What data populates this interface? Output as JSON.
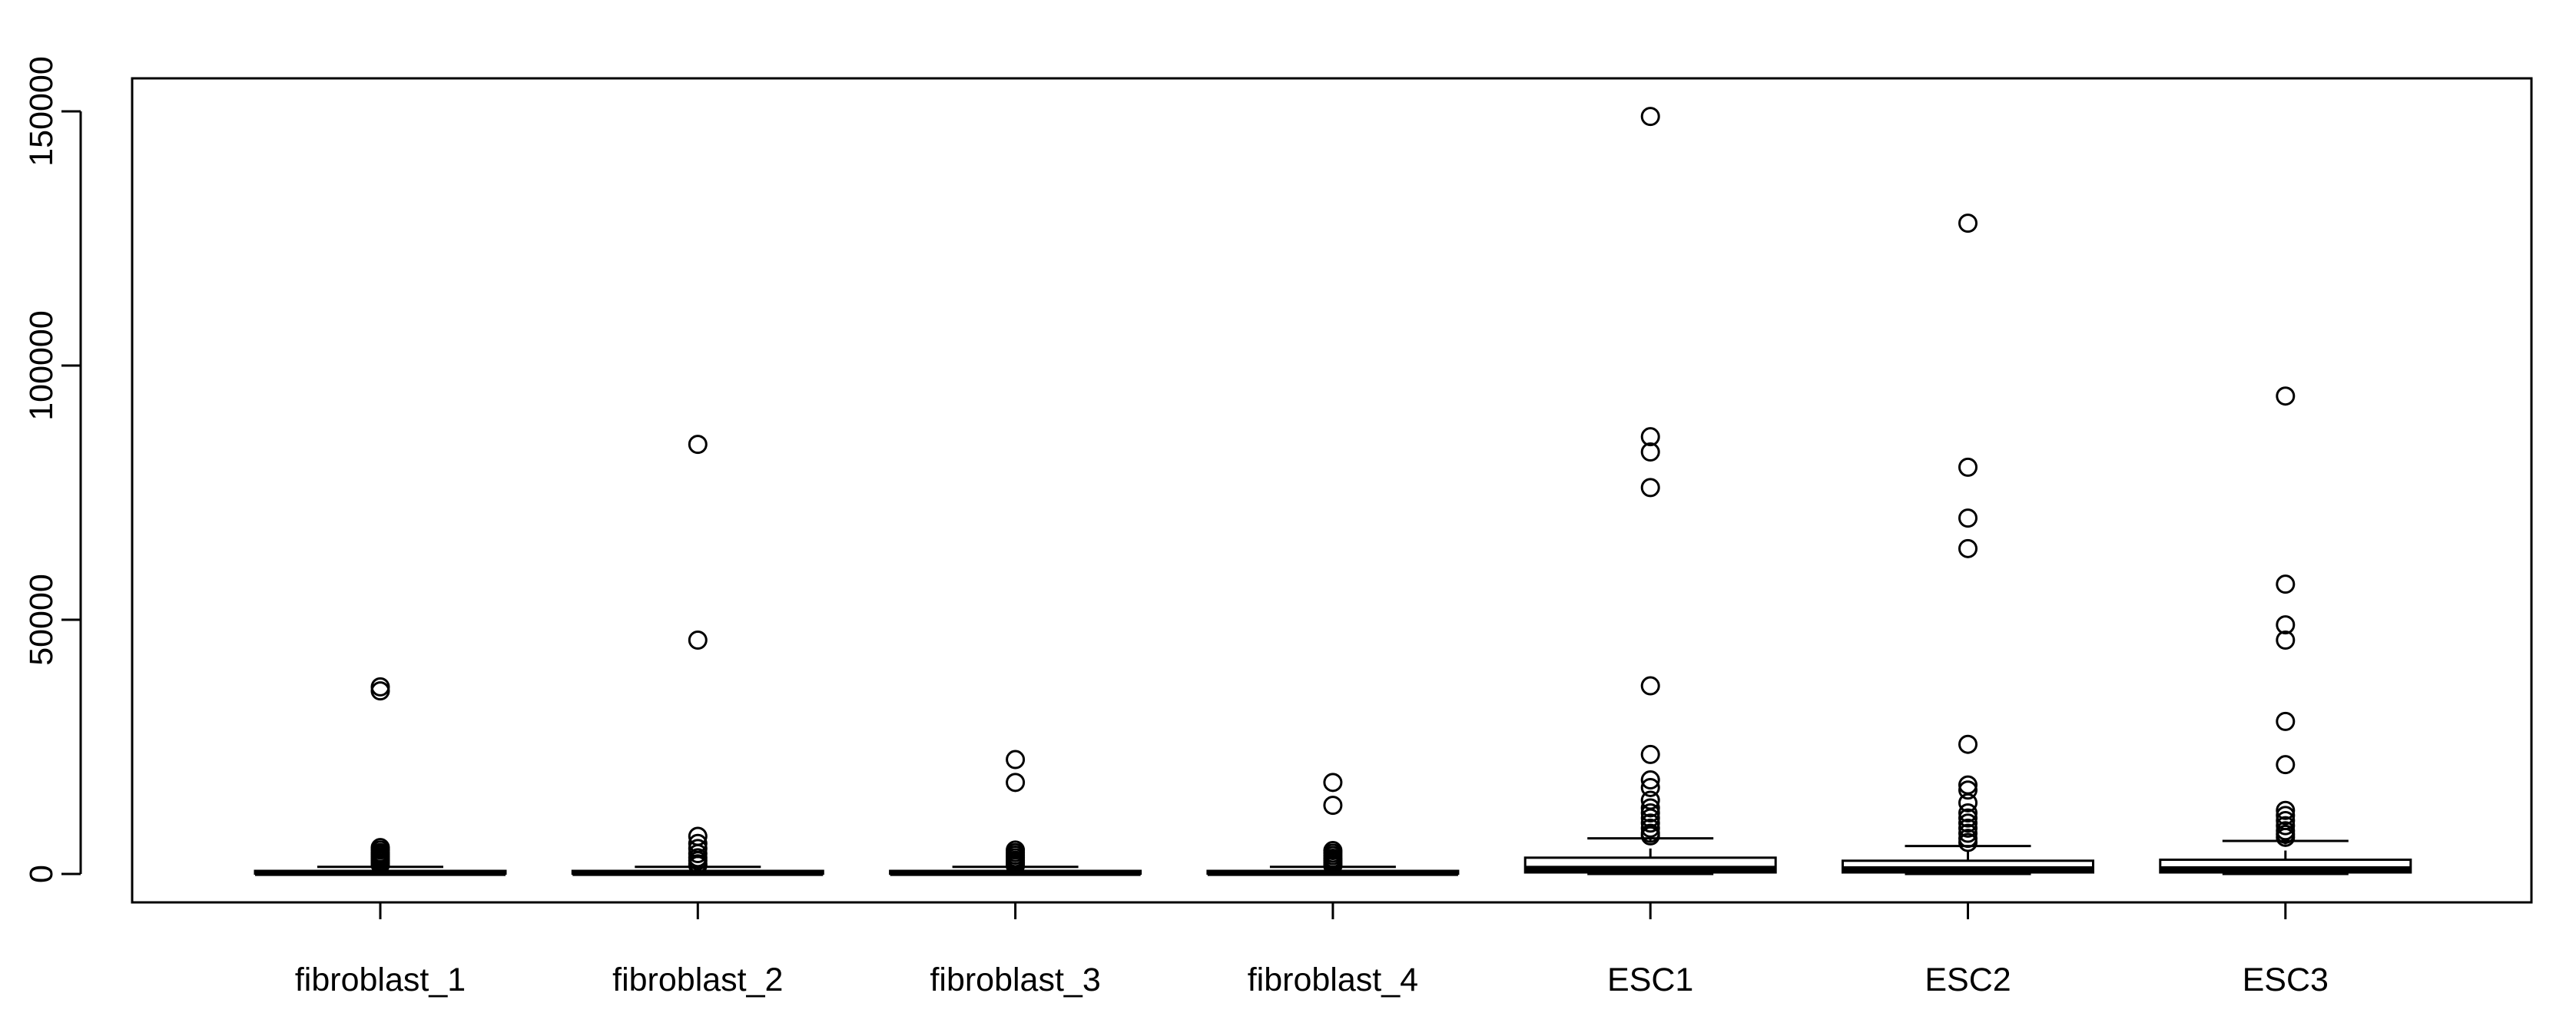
{
  "chart_data": {
    "type": "box",
    "title": "",
    "xlabel": "",
    "ylabel": "",
    "ylim": [
      -6000,
      155000
    ],
    "yticks": [
      0,
      50000,
      100000,
      150000
    ],
    "grid": false,
    "legend": "none",
    "categories": [
      "fibroblast_1",
      "fibroblast_2",
      "fibroblast_3",
      "fibroblast_4",
      "ESC1",
      "ESC2",
      "ESC3"
    ],
    "boxes": [
      {
        "name": "fibroblast_1",
        "min": 0,
        "q1": 60,
        "median": 200,
        "q3": 600,
        "max": 1400,
        "outliers": [
          36800,
          36000,
          5200,
          4700,
          4200,
          3800,
          3400,
          3000,
          2600,
          2200,
          1800
        ]
      },
      {
        "name": "fibroblast_2",
        "min": 0,
        "q1": 60,
        "median": 200,
        "q3": 600,
        "max": 1400,
        "outliers": [
          84500,
          46000,
          7400,
          6000,
          5000,
          4000,
          3200,
          2600,
          2000,
          1700
        ]
      },
      {
        "name": "fibroblast_3",
        "min": 0,
        "q1": 60,
        "median": 200,
        "q3": 600,
        "max": 1400,
        "outliers": [
          22500,
          18000,
          4700,
          4200,
          3700,
          3200,
          2700,
          2300,
          1900,
          1600
        ]
      },
      {
        "name": "fibroblast_4",
        "min": 0,
        "q1": 60,
        "median": 200,
        "q3": 600,
        "max": 1400,
        "outliers": [
          18000,
          13500,
          4600,
          4100,
          3600,
          3100,
          2700,
          2300,
          1900,
          1600
        ]
      },
      {
        "name": "ESC1",
        "min": 0,
        "q1": 300,
        "median": 1000,
        "q3": 3200,
        "max": 7000,
        "outliers": [
          149000,
          86000,
          83000,
          76000,
          37000,
          23500,
          18500,
          17000,
          14500,
          13000,
          12000,
          11000,
          10000,
          9000,
          8000,
          7500
        ]
      },
      {
        "name": "ESC2",
        "min": 0,
        "q1": 300,
        "median": 900,
        "q3": 2600,
        "max": 5500,
        "outliers": [
          128000,
          80000,
          70000,
          64000,
          25500,
          17500,
          16500,
          14000,
          12000,
          11000,
          10000,
          9000,
          8000,
          7000,
          6200
        ]
      },
      {
        "name": "ESC3",
        "min": 0,
        "q1": 300,
        "median": 900,
        "q3": 2800,
        "max": 6500,
        "outliers": [
          94000,
          57000,
          49000,
          46000,
          30000,
          21500,
          12500,
          11500,
          10500,
          9500,
          8500,
          7800,
          7200
        ]
      }
    ]
  }
}
